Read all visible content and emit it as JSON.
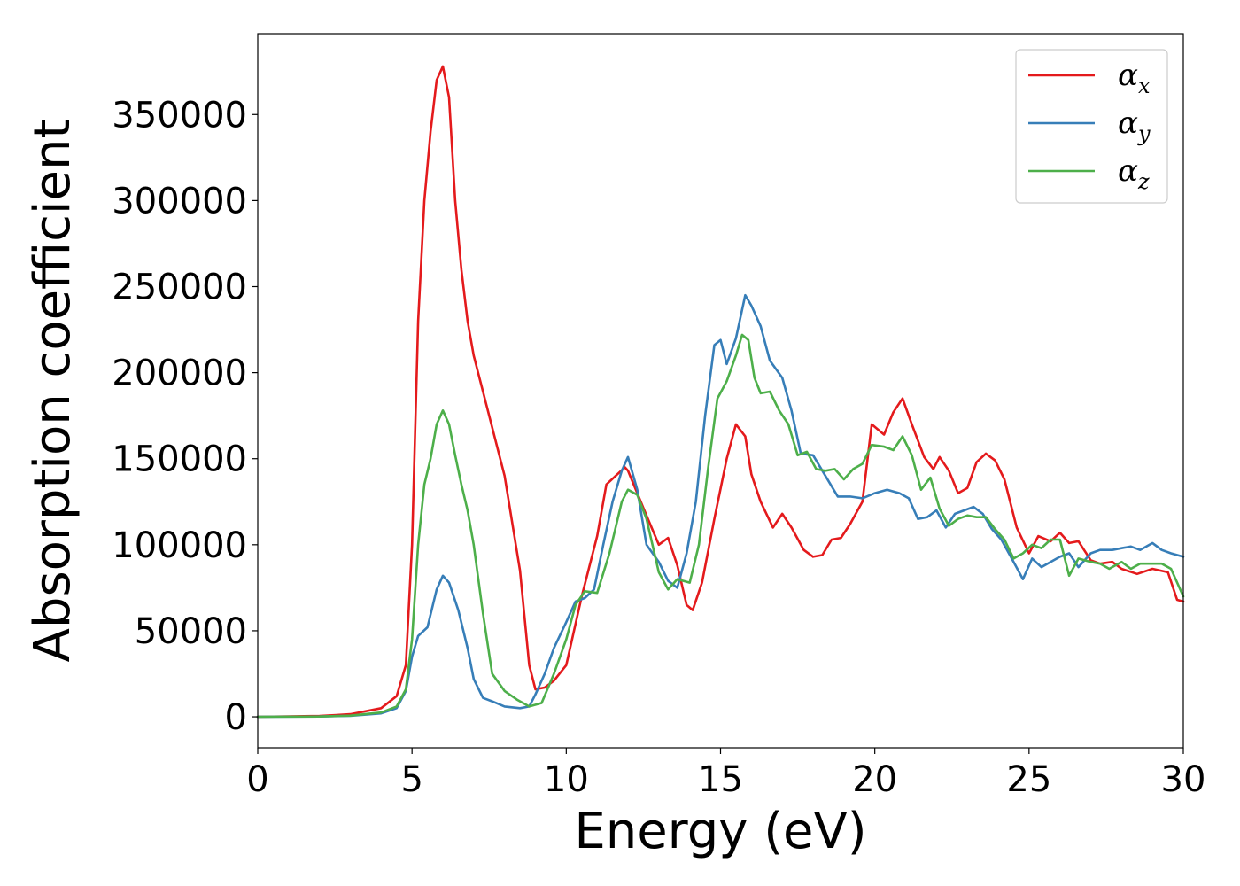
{
  "chart_data": {
    "type": "line",
    "title": "",
    "xlabel": "Energy (eV)",
    "ylabel": "Absorption coefficient",
    "xlim": [
      0,
      30
    ],
    "ylim": [
      -18000,
      397000
    ],
    "xticks": [
      0,
      5,
      10,
      15,
      20,
      25,
      30
    ],
    "xtick_labels": [
      "0",
      "5",
      "10",
      "15",
      "20",
      "25",
      "30"
    ],
    "yticks": [
      0,
      50000,
      100000,
      150000,
      200000,
      250000,
      300000,
      350000
    ],
    "ytick_labels": [
      "0",
      "50000",
      "100000",
      "150000",
      "200000",
      "250000",
      "300000",
      "350000"
    ],
    "grid": false,
    "legend_position": "top-right",
    "series": [
      {
        "name": "αx",
        "symbol": "α",
        "subscript": "x",
        "color": "#e41a1c",
        "x": [
          0,
          2,
          3,
          4,
          4.5,
          4.8,
          5.0,
          5.2,
          5.4,
          5.6,
          5.8,
          6.0,
          6.2,
          6.4,
          6.6,
          6.8,
          7.0,
          7.5,
          8.0,
          8.5,
          8.8,
          9.0,
          9.3,
          9.6,
          10.0,
          10.5,
          11.0,
          11.3,
          11.6,
          11.9,
          12.0,
          12.3,
          12.6,
          13.0,
          13.3,
          13.6,
          13.9,
          14.1,
          14.4,
          14.8,
          15.2,
          15.5,
          15.8,
          16.0,
          16.3,
          16.7,
          17.0,
          17.3,
          17.7,
          18.0,
          18.3,
          18.6,
          18.9,
          19.2,
          19.6,
          19.9,
          20.3,
          20.6,
          20.9,
          21.2,
          21.6,
          21.9,
          22.1,
          22.4,
          22.7,
          23.0,
          23.3,
          23.6,
          23.9,
          24.2,
          24.6,
          25.0,
          25.3,
          25.7,
          26.0,
          26.3,
          26.6,
          27.0,
          27.3,
          27.7,
          28.0,
          28.5,
          29.0,
          29.5,
          29.8,
          30
        ],
        "y": [
          0,
          500,
          1500,
          5000,
          12000,
          30000,
          100000,
          230000,
          300000,
          340000,
          370000,
          378000,
          360000,
          300000,
          260000,
          230000,
          210000,
          175000,
          140000,
          85000,
          30000,
          16000,
          17000,
          21000,
          30000,
          70000,
          105000,
          135000,
          140000,
          145000,
          143000,
          130000,
          117000,
          100000,
          104000,
          88000,
          65000,
          62000,
          78000,
          115000,
          150000,
          170000,
          163000,
          141000,
          125000,
          110000,
          118000,
          110000,
          97000,
          93000,
          94000,
          103000,
          104000,
          112000,
          125000,
          170000,
          164000,
          177000,
          185000,
          170000,
          151000,
          144000,
          151000,
          143000,
          130000,
          133000,
          148000,
          153000,
          149000,
          138000,
          110000,
          95000,
          105000,
          102000,
          107000,
          101000,
          102000,
          91000,
          89000,
          90000,
          86000,
          83000,
          86000,
          84000,
          68000,
          67000
        ]
      },
      {
        "name": "αy",
        "symbol": "α",
        "subscript": "y",
        "color": "#377eb8",
        "x": [
          0,
          2,
          3,
          4,
          4.5,
          4.8,
          5.0,
          5.2,
          5.5,
          5.8,
          6.0,
          6.2,
          6.5,
          6.8,
          7.0,
          7.3,
          7.6,
          8.0,
          8.5,
          8.8,
          9.0,
          9.3,
          9.6,
          10.0,
          10.3,
          10.6,
          10.9,
          11.2,
          11.5,
          11.8,
          12.0,
          12.3,
          12.6,
          13.0,
          13.3,
          13.6,
          13.9,
          14.2,
          14.5,
          14.8,
          15.0,
          15.2,
          15.5,
          15.8,
          16.0,
          16.3,
          16.6,
          17.0,
          17.3,
          17.6,
          18.0,
          18.4,
          18.8,
          19.2,
          19.6,
          20.0,
          20.4,
          20.8,
          21.1,
          21.4,
          21.7,
          22.0,
          22.3,
          22.6,
          22.9,
          23.2,
          23.5,
          23.8,
          24.1,
          24.5,
          24.8,
          25.1,
          25.4,
          25.7,
          26.0,
          26.3,
          26.6,
          27.0,
          27.3,
          27.7,
          28.0,
          28.3,
          28.6,
          29.0,
          29.3,
          29.6,
          30
        ],
        "y": [
          0,
          200,
          600,
          2000,
          5000,
          15000,
          35000,
          47000,
          52000,
          74000,
          82000,
          78000,
          62000,
          40000,
          22000,
          11000,
          9000,
          6000,
          5000,
          6000,
          13000,
          25000,
          40000,
          55000,
          67000,
          69000,
          74000,
          100000,
          125000,
          143000,
          151000,
          132000,
          100000,
          90000,
          79000,
          75000,
          95000,
          125000,
          175000,
          216000,
          219000,
          205000,
          220000,
          245000,
          239000,
          227000,
          207000,
          197000,
          178000,
          153000,
          152000,
          140000,
          128000,
          128000,
          127000,
          130000,
          132000,
          130000,
          127000,
          115000,
          116000,
          120000,
          110000,
          118000,
          120000,
          122000,
          118000,
          109000,
          103000,
          90000,
          80000,
          92000,
          87000,
          90000,
          93000,
          95000,
          87000,
          95000,
          97000,
          97000,
          98000,
          99000,
          97000,
          101000,
          97000,
          95000,
          93000
        ]
      },
      {
        "name": "αz",
        "symbol": "α",
        "subscript": "z",
        "color": "#4daf4a",
        "x": [
          0,
          2,
          3,
          4,
          4.5,
          4.8,
          5.0,
          5.2,
          5.4,
          5.6,
          5.8,
          6.0,
          6.2,
          6.4,
          6.6,
          6.8,
          7.0,
          7.3,
          7.6,
          8.0,
          8.4,
          8.8,
          9.2,
          9.6,
          10.0,
          10.3,
          10.6,
          11.0,
          11.4,
          11.8,
          12.0,
          12.3,
          12.6,
          13.0,
          13.3,
          13.6,
          14.0,
          14.3,
          14.6,
          14.9,
          15.2,
          15.5,
          15.7,
          15.9,
          16.1,
          16.3,
          16.6,
          16.9,
          17.2,
          17.5,
          17.8,
          18.1,
          18.4,
          18.7,
          19.0,
          19.3,
          19.6,
          19.9,
          20.3,
          20.6,
          20.9,
          21.2,
          21.5,
          21.8,
          22.1,
          22.4,
          22.7,
          23.0,
          23.3,
          23.6,
          23.9,
          24.2,
          24.5,
          24.8,
          25.1,
          25.4,
          25.7,
          26.0,
          26.3,
          26.6,
          27.0,
          27.3,
          27.6,
          28.0,
          28.3,
          28.6,
          29.0,
          29.3,
          29.6,
          30
        ],
        "y": [
          0,
          200,
          700,
          2500,
          6000,
          16000,
          45000,
          100000,
          135000,
          150000,
          170000,
          178000,
          170000,
          152000,
          135000,
          120000,
          100000,
          60000,
          25000,
          15000,
          10000,
          6000,
          8000,
          25000,
          45000,
          65000,
          73000,
          72000,
          95000,
          125000,
          132000,
          129000,
          115000,
          84000,
          74000,
          80000,
          78000,
          100000,
          145000,
          185000,
          195000,
          210000,
          222000,
          219000,
          197000,
          188000,
          189000,
          178000,
          170000,
          152000,
          154000,
          144000,
          143000,
          144000,
          138000,
          144000,
          147000,
          158000,
          157000,
          155000,
          163000,
          152000,
          132000,
          139000,
          121000,
          111000,
          115000,
          117000,
          116000,
          116000,
          109000,
          103000,
          92000,
          95000,
          100000,
          98000,
          103000,
          103000,
          82000,
          92000,
          90000,
          89000,
          86000,
          90000,
          86000,
          89000,
          89000,
          89000,
          86000,
          70000
        ]
      }
    ]
  }
}
